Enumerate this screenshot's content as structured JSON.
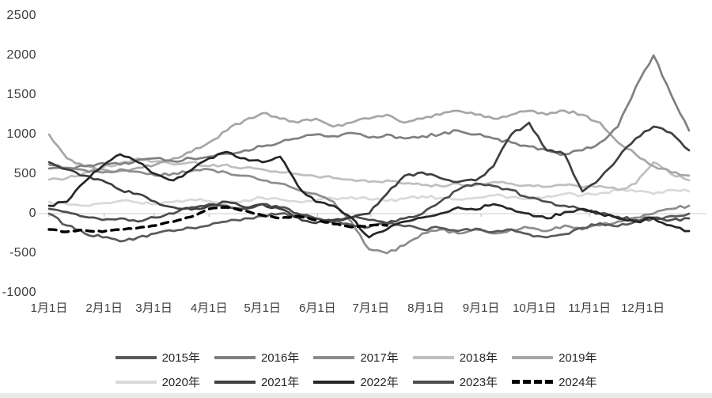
{
  "chart_data": {
    "type": "line",
    "title": "",
    "grid": "zero-line-only",
    "legend_position": "bottom",
    "x_axis": {
      "tick_labels": [
        "1月1日",
        "2月1日",
        "3月1日",
        "4月1日",
        "5月1日",
        "6月1日",
        "7月1日",
        "8月1日",
        "9月1日",
        "10月1日",
        "11月1日",
        "12月1日"
      ],
      "tick_days": [
        1,
        32,
        60,
        91,
        121,
        152,
        182,
        213,
        244,
        274,
        305,
        335
      ],
      "range_days": [
        1,
        365
      ]
    },
    "y_axis": {
      "tick_labels": [
        "2500",
        "2000",
        "1500",
        "1000",
        "500",
        "0",
        "-500",
        "-1000"
      ],
      "ticks": [
        2500,
        2000,
        1500,
        1000,
        500,
        0,
        -500,
        -1000
      ],
      "min": -1000,
      "max": 2500
    },
    "sample_days": [
      1,
      11,
      21,
      31,
      41,
      51,
      61,
      71,
      81,
      91,
      101,
      111,
      121,
      131,
      141,
      151,
      161,
      171,
      181,
      191,
      201,
      211,
      221,
      231,
      241,
      251,
      261,
      271,
      281,
      291,
      301,
      311,
      321,
      331,
      341,
      351,
      361
    ],
    "series": [
      {
        "name": "2015年",
        "color": "#595959",
        "style": "solid",
        "values": [
          0,
          -150,
          -250,
          -300,
          -350,
          -300,
          -250,
          -220,
          -180,
          -150,
          -100,
          -60,
          -30,
          0,
          -30,
          -60,
          -100,
          -140,
          -170,
          -130,
          -160,
          -200,
          -180,
          -220,
          -190,
          -230,
          -200,
          -260,
          -300,
          -260,
          -180,
          -120,
          -160,
          -100,
          -60,
          -30,
          0
        ]
      },
      {
        "name": "2016年",
        "color": "#808080",
        "style": "solid",
        "values": [
          570,
          560,
          600,
          640,
          620,
          680,
          700,
          660,
          700,
          720,
          760,
          800,
          850,
          900,
          950,
          1000,
          980,
          1020,
          960,
          1000,
          950,
          980,
          1000,
          1050,
          1000,
          950,
          900,
          850,
          800,
          750,
          800,
          900,
          1100,
          1600,
          2000,
          1500,
          1050
        ]
      },
      {
        "name": "2017年",
        "color": "#8c8c8c",
        "style": "solid",
        "values": [
          620,
          580,
          550,
          520,
          560,
          530,
          480,
          510,
          540,
          560,
          520,
          480,
          420,
          380,
          300,
          250,
          150,
          -100,
          -450,
          -500,
          -400,
          -250,
          -200,
          -250,
          -200,
          -250,
          -200,
          -180,
          -220,
          -150,
          -200,
          -150,
          -100,
          -50,
          0,
          60,
          100
        ]
      },
      {
        "name": "2018年",
        "color": "#bfbfbf",
        "style": "solid",
        "values": [
          430,
          450,
          520,
          580,
          640,
          700,
          660,
          620,
          650,
          600,
          620,
          580,
          560,
          520,
          500,
          470,
          450,
          430,
          400,
          420,
          380,
          360,
          350,
          380,
          360,
          400,
          380,
          360,
          340,
          360,
          330,
          350,
          300,
          380,
          650,
          500,
          420
        ]
      },
      {
        "name": "2019年",
        "color": "#a6a6a6",
        "style": "solid",
        "values": [
          1000,
          700,
          600,
          560,
          540,
          580,
          620,
          700,
          780,
          900,
          1050,
          1180,
          1270,
          1200,
          1150,
          1200,
          1100,
          1150,
          1200,
          1250,
          1150,
          1200,
          1250,
          1300,
          1250,
          1200,
          1250,
          1300,
          1250,
          1300,
          1250,
          1150,
          900,
          750,
          600,
          520,
          480
        ]
      },
      {
        "name": "2020年",
        "color": "#d9d9d9",
        "style": "solid",
        "values": [
          150,
          120,
          100,
          130,
          160,
          140,
          120,
          150,
          180,
          160,
          140,
          170,
          200,
          180,
          150,
          170,
          190,
          210,
          180,
          160,
          190,
          220,
          200,
          180,
          200,
          230,
          210,
          190,
          220,
          250,
          230,
          260,
          300,
          280,
          250,
          300,
          280
        ]
      },
      {
        "name": "2021年",
        "color": "#3f3f3f",
        "style": "solid",
        "values": [
          650,
          560,
          480,
          420,
          300,
          250,
          150,
          80,
          50,
          100,
          150,
          80,
          120,
          60,
          -50,
          -120,
          -80,
          -50,
          0,
          250,
          480,
          520,
          450,
          400,
          420,
          600,
          1000,
          1150,
          800,
          750,
          280,
          450,
          700,
          950,
          1100,
          1020,
          800
        ]
      },
      {
        "name": "2022年",
        "color": "#262626",
        "style": "solid",
        "values": [
          100,
          150,
          400,
          600,
          750,
          650,
          500,
          420,
          550,
          700,
          780,
          700,
          650,
          720,
          350,
          150,
          100,
          -50,
          -300,
          -200,
          -100,
          -50,
          0,
          80,
          50,
          120,
          60,
          0,
          -60,
          20,
          60,
          0,
          -60,
          -100,
          -60,
          -150,
          -220
        ]
      },
      {
        "name": "2023年",
        "color": "#4d4d4d",
        "style": "solid",
        "values": [
          60,
          20,
          -40,
          -80,
          -60,
          -100,
          -50,
          0,
          80,
          120,
          100,
          60,
          120,
          80,
          0,
          -60,
          -100,
          -50,
          -80,
          -120,
          -60,
          0,
          150,
          300,
          380,
          350,
          300,
          200,
          150,
          100,
          50,
          0,
          -40,
          -80,
          -50,
          -80,
          -60
        ]
      },
      {
        "name": "2024年",
        "color": "#000000",
        "style": "dashed",
        "values": [
          -200,
          -230,
          -210,
          -230,
          -200,
          -180,
          -150,
          -100,
          -40,
          60,
          80,
          40,
          -20,
          -60,
          -30,
          -80,
          -130,
          -170,
          -150,
          -150,
          null,
          null,
          null,
          null,
          null,
          null,
          null,
          null,
          null,
          null,
          null,
          null,
          null,
          null,
          null,
          null,
          null
        ]
      }
    ]
  }
}
